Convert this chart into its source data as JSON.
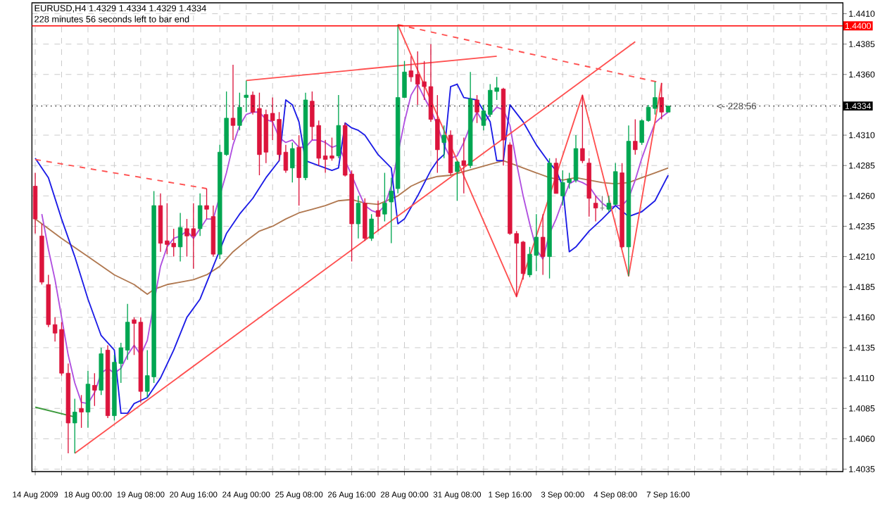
{
  "chart_data": {
    "type": "candlestick",
    "title": "EURUSD,H4 1.4329 1.4334 1.4329 1.4334",
    "subtitle": "228 minutes 56 seconds left to bar end",
    "annotations": [
      "<- 228:56"
    ],
    "categories": [
      "14 Aug 2009",
      null,
      null,
      null,
      null,
      null,
      null,
      null,
      "18 Aug 00:00",
      null,
      null,
      null,
      null,
      null,
      null,
      null,
      "19 Aug 08:00",
      null,
      null,
      null,
      null,
      null,
      null,
      null,
      "20 Aug 16:00",
      null,
      null,
      null,
      null,
      null,
      null,
      null,
      "24 Aug 00:00",
      null,
      null,
      null,
      null,
      null,
      null,
      null,
      "25 Aug 08:00",
      null,
      null,
      null,
      null,
      null,
      null,
      null,
      "26 Aug 16:00",
      null,
      null,
      null,
      null,
      null,
      null,
      null,
      "28 Aug 00:00",
      null,
      null,
      null,
      null,
      null,
      null,
      null,
      "31 Aug 08:00",
      null,
      null,
      null,
      null,
      null,
      null,
      null,
      "1 Sep 16:00",
      null,
      null,
      null,
      null,
      null,
      null,
      null,
      "3 Sep 00:00",
      null,
      null,
      null,
      null,
      null,
      null,
      null,
      "4 Sep 08:00",
      null,
      null,
      null,
      null,
      null,
      null,
      null,
      "7 Sep 16:00",
      null,
      null,
      null,
      null,
      null,
      null,
      null,
      null,
      null,
      null,
      null,
      null,
      null,
      null,
      null,
      null,
      null,
      null,
      null,
      null,
      null,
      null,
      null,
      null,
      null,
      null
    ],
    "ohlc": [
      [
        1.4268,
        1.4279,
        1.4229,
        1.4241
      ],
      [
        1.4227,
        1.4237,
        1.4187,
        1.4189
      ],
      [
        1.4187,
        1.4195,
        1.4152,
        1.4154
      ],
      [
        1.4154,
        1.416,
        1.414,
        1.4147
      ],
      [
        1.415,
        1.4156,
        1.4112,
        1.4114
      ],
      [
        1.4114,
        1.4122,
        1.4048,
        1.4073
      ],
      [
        1.4073,
        1.4093,
        1.4048,
        1.4082
      ],
      [
        1.4085,
        1.4096,
        1.4069,
        1.4082
      ],
      [
        1.4082,
        1.4116,
        1.4069,
        1.4105
      ],
      [
        1.4104,
        1.4114,
        1.4087,
        1.41
      ],
      [
        1.41,
        1.4135,
        1.4096,
        1.413
      ],
      [
        1.4133,
        1.4137,
        1.4077,
        1.4079
      ],
      [
        1.4079,
        1.4129,
        1.4075,
        1.4123
      ],
      [
        1.4122,
        1.4139,
        1.4106,
        1.4135
      ],
      [
        1.4133,
        1.4171,
        1.4125,
        1.4156
      ],
      [
        1.4158,
        1.416,
        1.4129,
        1.4155
      ],
      [
        1.4156,
        1.416,
        1.409,
        1.4099
      ],
      [
        1.4099,
        1.4133,
        1.4094,
        1.4112
      ],
      [
        1.4111,
        1.4264,
        1.4106,
        1.4252
      ],
      [
        1.4252,
        1.4262,
        1.4214,
        1.4221
      ],
      [
        1.4223,
        1.4254,
        1.4212,
        1.422
      ],
      [
        1.4221,
        1.4233,
        1.421,
        1.4218
      ],
      [
        1.4218,
        1.4246,
        1.4206,
        1.4234
      ],
      [
        1.4233,
        1.4241,
        1.421,
        1.4227
      ],
      [
        1.4233,
        1.4254,
        1.42,
        1.4227
      ],
      [
        1.4233,
        1.4262,
        1.4227,
        1.4252
      ],
      [
        1.4252,
        1.4266,
        1.4241,
        1.4249
      ],
      [
        1.4243,
        1.4252,
        1.421,
        1.4212
      ],
      [
        1.4212,
        1.4302,
        1.4208,
        1.4296
      ],
      [
        1.4294,
        1.4346,
        1.4293,
        1.4324
      ],
      [
        1.4324,
        1.4368,
        1.4306,
        1.4318
      ],
      [
        1.4318,
        1.4345,
        1.4314,
        1.4333
      ],
      [
        1.4341,
        1.4355,
        1.4329,
        1.4343
      ],
      [
        1.4343,
        1.4346,
        1.4327,
        1.4329
      ],
      [
        1.4332,
        1.4345,
        1.4277,
        1.4294
      ],
      [
        1.4327,
        1.4331,
        1.4287,
        1.4296
      ],
      [
        1.4328,
        1.4341,
        1.4306,
        1.4322
      ],
      [
        1.4323,
        1.4329,
        1.4289,
        1.4294
      ],
      [
        1.4296,
        1.4302,
        1.4279,
        1.4281
      ],
      [
        1.4283,
        1.4304,
        1.4271,
        1.4299
      ],
      [
        1.43,
        1.431,
        1.4252,
        1.4275
      ],
      [
        1.4275,
        1.4345,
        1.4273,
        1.4339
      ],
      [
        1.4338,
        1.4346,
        1.4306,
        1.4317
      ],
      [
        1.4318,
        1.4322,
        1.4285,
        1.4291
      ],
      [
        1.4293,
        1.4306,
        1.4279,
        1.429
      ],
      [
        1.4293,
        1.4308,
        1.4289,
        1.4291
      ],
      [
        1.4293,
        1.4343,
        1.4291,
        1.4318
      ],
      [
        1.4318,
        1.432,
        1.4276,
        1.4277
      ],
      [
        1.4278,
        1.4281,
        1.4206,
        1.4237
      ],
      [
        1.4237,
        1.426,
        1.4225,
        1.4254
      ],
      [
        1.4254,
        1.4258,
        1.4223,
        1.4225
      ],
      [
        1.4225,
        1.4245,
        1.4223,
        1.4241
      ],
      [
        1.4248,
        1.4256,
        1.4231,
        1.4243
      ],
      [
        1.4245,
        1.4279,
        1.4239,
        1.4254
      ],
      [
        1.4255,
        1.4275,
        1.4221,
        1.4264
      ],
      [
        1.4266,
        1.4401,
        1.4262,
        1.4341
      ],
      [
        1.4341,
        1.4371,
        1.4341,
        1.4362
      ],
      [
        1.4363,
        1.4375,
        1.4354,
        1.4358
      ],
      [
        1.436,
        1.4379,
        1.4335,
        1.4352
      ],
      [
        1.4354,
        1.4371,
        1.4339,
        1.435
      ],
      [
        1.435,
        1.4385,
        1.4321,
        1.4323
      ],
      [
        1.4323,
        1.4343,
        1.4279,
        1.4298
      ],
      [
        1.4304,
        1.4318,
        1.4291,
        1.431
      ],
      [
        1.431,
        1.4314,
        1.4277,
        1.4279
      ],
      [
        1.428,
        1.4289,
        1.4256,
        1.4288
      ],
      [
        1.4289,
        1.4308,
        1.4262,
        1.4285
      ],
      [
        1.4285,
        1.4362,
        1.4283,
        1.434
      ],
      [
        1.4339,
        1.4343,
        1.432,
        1.4329
      ],
      [
        1.4318,
        1.4335,
        1.4314,
        1.433
      ],
      [
        1.4327,
        1.4352,
        1.4325,
        1.4347
      ],
      [
        1.4346,
        1.4358,
        1.4339,
        1.4349
      ],
      [
        1.4348,
        1.4349,
        1.4285,
        1.4306
      ],
      [
        1.4302,
        1.4304,
        1.4228,
        1.4229
      ],
      [
        1.4229,
        1.4231,
        1.4177,
        1.4221
      ],
      [
        1.4222,
        1.4223,
        1.4191,
        1.4196
      ],
      [
        1.4195,
        1.4218,
        1.4193,
        1.4212
      ],
      [
        1.4211,
        1.4245,
        1.4198,
        1.4226
      ],
      [
        1.4226,
        1.4245,
        1.4195,
        1.421
      ],
      [
        1.421,
        1.4291,
        1.4192,
        1.4287
      ],
      [
        1.4287,
        1.4291,
        1.4262,
        1.4262
      ],
      [
        1.426,
        1.4281,
        1.4252,
        1.4271
      ],
      [
        1.4271,
        1.4279,
        1.4266,
        1.4274
      ],
      [
        1.4273,
        1.431,
        1.4271,
        1.4299
      ],
      [
        1.4299,
        1.4343,
        1.4287,
        1.4289
      ],
      [
        1.4287,
        1.4291,
        1.4243,
        1.4258
      ],
      [
        1.4254,
        1.426,
        1.4239,
        1.425
      ],
      [
        1.425,
        1.426,
        1.4248,
        1.425
      ],
      [
        1.4249,
        1.426,
        1.4247,
        1.4254
      ],
      [
        1.4253,
        1.4287,
        1.4252,
        1.428
      ],
      [
        1.4279,
        1.4287,
        1.4217,
        1.4218
      ],
      [
        1.4218,
        1.4318,
        1.4194,
        1.4305
      ],
      [
        1.4305,
        1.4323,
        1.4294,
        1.4298
      ],
      [
        1.4304,
        1.4323,
        1.4302,
        1.4322
      ],
      [
        1.4322,
        1.4335,
        1.4321,
        1.4333
      ],
      [
        1.4332,
        1.4354,
        1.4327,
        1.4341
      ],
      [
        1.4341,
        1.4353,
        1.4323,
        1.4329
      ],
      [
        1.4329,
        1.4334,
        1.4329,
        1.4334
      ],
      null,
      null,
      null,
      null,
      null,
      null,
      null,
      null,
      null,
      null,
      null,
      null,
      null,
      null,
      null,
      null,
      null,
      null,
      null,
      null,
      null,
      null,
      null,
      null,
      null,
      null
    ],
    "colors": [
      "#dc143c",
      "#dc143c",
      "#dc143c",
      "#dc143c",
      "#dc143c",
      "#dc143c",
      "#00a651",
      "#dc143c",
      "#00a651",
      "#dc143c",
      "#00a651",
      "#dc143c",
      "#00a651",
      "#00a651",
      "#00a651",
      "#dc143c",
      "#dc143c",
      "#00a651",
      "#00a651",
      "#dc143c",
      "#dc143c",
      "#dc143c",
      "#00a651",
      "#dc143c",
      "#dc143c",
      "#00a651",
      "#dc143c",
      "#dc143c",
      "#00a651",
      "#00a651",
      "#dc143c",
      "#00a651",
      "#00a651",
      "#dc143c",
      "#dc143c",
      "#dc143c",
      "#dc143c",
      "#dc143c",
      "#dc143c",
      "#00a651",
      "#dc143c",
      "#00a651",
      "#dc143c",
      "#dc143c",
      "#dc143c",
      "#dc143c",
      "#00a651",
      "#dc143c",
      "#dc143c",
      "#00a651",
      "#dc143c",
      "#00a651",
      "#dc143c",
      "#00a651",
      "#00a651",
      "#00a651",
      "#00a651",
      "#dc143c",
      "#dc143c",
      "#dc143c",
      "#dc143c",
      "#dc143c",
      "#00a651",
      "#dc143c",
      "#00a651",
      "#dc143c",
      "#00a651",
      "#dc143c",
      "#00a651",
      "#00a651",
      "#00a651",
      "#dc143c",
      "#dc143c",
      "#dc143c",
      "#dc143c",
      "#00a651",
      "#00a651",
      "#dc143c",
      "#00a651",
      "#dc143c",
      "#00a651",
      "#00a651",
      "#00a651",
      "#dc143c",
      "#dc143c",
      "#dc143c",
      "#808080",
      "#00a651",
      "#00a651",
      "#dc143c",
      "#00a651",
      "#dc143c",
      "#00a651",
      "#00a651",
      "#00a651",
      "#dc143c",
      "#00a651",
      null,
      null,
      null,
      null,
      null,
      null,
      null,
      null,
      null,
      null,
      null,
      null,
      null,
      null,
      null,
      null,
      null,
      null,
      null,
      null,
      null,
      null,
      null,
      null,
      null,
      null
    ],
    "series": [
      {
        "type": "line",
        "color": "#b07850",
        "values": [
          1.4241,
          null,
          null,
          null,
          1.4225,
          null,
          null,
          null,
          1.421,
          null,
          null,
          null,
          1.4195,
          null,
          null,
          1.4187,
          null,
          1.4179,
          1.4183,
          null,
          1.4187,
          null,
          1.4189,
          null,
          1.4191,
          null,
          1.4195,
          null,
          1.4202,
          null,
          1.4214,
          null,
          1.4223,
          null,
          1.4231,
          null,
          1.4235,
          null,
          1.4241,
          null,
          1.4246,
          null,
          1.4249,
          null,
          1.4252,
          null,
          1.4256,
          null,
          1.4257,
          null,
          1.4254,
          null,
          1.4253,
          null,
          null,
          1.426,
          null,
          1.4268,
          null,
          1.4273,
          null,
          1.4276,
          null,
          1.4277,
          null,
          1.428,
          null,
          1.4283,
          null,
          1.4286,
          null,
          1.4289,
          1.4287,
          null,
          1.4283,
          null,
          1.4279,
          null,
          1.4275,
          null,
          1.4273,
          null,
          1.4275,
          null,
          1.4273,
          null,
          1.4271,
          null,
          1.427,
          null,
          1.4271,
          null,
          1.4275,
          null,
          1.4279,
          null,
          1.4283,
          null,
          null,
          null,
          null,
          null,
          null,
          null,
          null,
          null,
          null,
          null,
          null,
          null,
          null,
          null,
          null,
          null,
          null,
          null,
          null,
          null,
          null,
          null,
          null,
          null,
          null
        ]
      },
      {
        "type": "line",
        "color": "#b050e0",
        "values": [
          null,
          1.4245,
          1.4216,
          1.4191,
          1.416,
          1.4129,
          1.4106,
          1.409,
          1.4089,
          1.4098,
          1.4114,
          1.4118,
          1.4114,
          1.4118,
          1.4129,
          1.4137,
          1.4129,
          1.4141,
          null,
          1.4202,
          1.4218,
          1.4225,
          1.4227,
          1.4231,
          1.4225,
          1.4233,
          1.4241,
          1.4241,
          null,
          1.4279,
          1.4302,
          1.4318,
          1.4327,
          1.4329,
          1.4329,
          1.4323,
          1.4321,
          1.4308,
          1.4304,
          1.4306,
          1.43,
          1.43,
          1.4306,
          1.4306,
          1.4304,
          1.43,
          1.4302,
          1.4289,
          1.4277,
          1.4264,
          1.4252,
          1.4248,
          1.4246,
          1.4252,
          1.4268,
          null,
          1.4321,
          1.4343,
          1.4352,
          1.4341,
          1.4331,
          1.4318,
          1.4302,
          1.4291,
          1.4293,
          1.4304,
          1.4318,
          1.4329,
          1.432,
          1.4327,
          1.4333,
          1.4331,
          1.4318,
          1.4287,
          1.426,
          1.4237,
          1.4216,
          1.4208,
          1.4229,
          1.4241,
          1.4256,
          1.427,
          1.4273,
          1.4271,
          1.4268,
          1.426,
          1.4254,
          1.425,
          1.4252,
          1.4252,
          1.4258,
          1.4273,
          1.4291,
          1.4306,
          1.432,
          1.4325,
          1.4329,
          null,
          null,
          null,
          null,
          null,
          null,
          null,
          null,
          null,
          null,
          null,
          null,
          null,
          null,
          null,
          null,
          null,
          null,
          null,
          null,
          null,
          null,
          null,
          null,
          null,
          null
        ]
      },
      {
        "type": "line",
        "color": "#1c1ce6",
        "values": [
          1.4291,
          null,
          1.4275,
          null,
          1.4241,
          null,
          1.421,
          null,
          1.4175,
          null,
          1.4145,
          null,
          1.4133,
          1.4081,
          1.4081,
          1.4089,
          null,
          1.4094,
          null,
          1.411,
          null,
          1.4133,
          null,
          1.416,
          null,
          1.4175,
          null,
          1.4202,
          null,
          1.4229,
          null,
          1.4245,
          null,
          1.4258,
          null,
          1.4275,
          null,
          1.4289,
          1.4339,
          1.4335,
          1.4321,
          1.4289,
          null,
          1.4285,
          null,
          1.4281,
          1.4283,
          1.432,
          1.4316,
          1.4314,
          1.431,
          null,
          1.4294,
          null,
          1.4283,
          1.4237,
          1.4241,
          null,
          1.426,
          null,
          1.4281,
          1.4289,
          1.4294,
          1.435,
          1.4352,
          1.4341,
          null,
          1.4339,
          null,
          1.4321,
          1.4289,
          1.4289,
          1.4335,
          null,
          1.4321,
          null,
          1.4302,
          null,
          1.4287,
          1.4281,
          1.4268,
          1.4214,
          1.4218,
          null,
          1.4231,
          null,
          1.4241,
          null,
          1.4252,
          null,
          1.4243,
          null,
          1.4247,
          null,
          1.4256,
          null,
          1.4277,
          null,
          null,
          null,
          null,
          null,
          null,
          null,
          null,
          null,
          null,
          null,
          null,
          null,
          null,
          null,
          null,
          null,
          null,
          null,
          null,
          null,
          null,
          null,
          null,
          null,
          null
        ]
      },
      {
        "type": "line",
        "color": "#3c9a3c",
        "values": [
          1.4086,
          null,
          null,
          null,
          null,
          null,
          1.4078,
          null,
          null,
          null,
          null,
          null,
          null,
          null,
          null,
          null,
          null,
          null,
          null,
          null,
          null,
          null,
          null,
          null,
          null,
          null,
          null,
          null,
          null,
          null,
          null,
          null,
          null,
          null,
          null,
          null,
          null,
          null,
          null,
          null,
          null,
          null,
          null,
          null,
          null,
          null,
          null,
          null,
          null,
          null,
          null,
          null,
          null,
          null,
          null,
          null,
          null,
          null,
          null,
          null,
          null,
          null,
          null,
          null,
          null,
          null,
          null,
          null,
          null,
          null,
          null,
          null,
          null,
          null,
          null,
          null,
          null,
          null,
          null,
          null,
          null,
          null,
          null,
          null,
          null,
          null,
          null,
          null,
          null,
          null,
          null,
          null,
          null,
          null,
          null,
          null,
          null,
          null,
          null,
          null,
          null,
          null,
          null,
          null,
          null,
          null,
          null,
          null,
          null,
          null,
          null,
          null,
          null,
          null,
          null,
          null,
          null,
          null,
          null,
          null,
          null,
          null,
          null
        ]
      },
      {
        "type": "line",
        "color": "#ff5050",
        "values": [
          null,
          null,
          null,
          null,
          null,
          null,
          null,
          null,
          null,
          null,
          null,
          null,
          null,
          null,
          null,
          null,
          null,
          null,
          null,
          null,
          null,
          null,
          null,
          null,
          null,
          null,
          null,
          null,
          null,
          null,
          null,
          null,
          null,
          null,
          null,
          null,
          null,
          null,
          null,
          null,
          null,
          null,
          null,
          null,
          null,
          null,
          null,
          null,
          null,
          null,
          null,
          null,
          null,
          null,
          null,
          1.4401,
          null,
          null,
          null,
          null,
          null,
          null,
          null,
          null,
          null,
          null,
          null,
          null,
          null,
          null,
          null,
          null,
          null,
          1.4177,
          null,
          null,
          null,
          null,
          null,
          null,
          null,
          null,
          null,
          1.4343,
          null,
          null,
          null,
          null,
          null,
          null,
          1.4194,
          null,
          null,
          null,
          null,
          1.4353,
          null,
          null,
          null,
          null,
          null,
          null,
          null,
          null,
          null,
          null,
          null,
          null,
          null,
          null,
          null,
          null,
          null,
          null,
          null,
          null,
          null,
          null,
          null,
          null,
          null,
          null,
          null
        ]
      },
      {
        "type": "line",
        "color": "#ff5050",
        "values": [
          null,
          null,
          null,
          null,
          null,
          null,
          1.4048,
          null,
          null,
          null,
          null,
          null,
          null,
          null,
          null,
          null,
          null,
          null,
          null,
          null,
          null,
          null,
          null,
          null,
          null,
          null,
          null,
          null,
          null,
          null,
          null,
          null,
          null,
          null,
          null,
          null,
          null,
          null,
          null,
          null,
          null,
          null,
          null,
          null,
          null,
          null,
          null,
          null,
          null,
          null,
          null,
          null,
          null,
          null,
          null,
          null,
          null,
          null,
          null,
          null,
          null,
          null,
          null,
          null,
          null,
          null,
          null,
          null,
          null,
          null,
          null,
          null,
          null,
          null,
          null,
          null,
          null,
          null,
          null,
          null,
          null,
          null,
          null,
          null,
          null,
          null,
          null,
          null,
          null,
          null,
          null,
          1.4387,
          null,
          null,
          null,
          null,
          null,
          null,
          null,
          null,
          null,
          null,
          null,
          null,
          null,
          null,
          null,
          null,
          null,
          null,
          null,
          null,
          null,
          null,
          null,
          null,
          null,
          null,
          null,
          null,
          null,
          null,
          null
        ]
      },
      {
        "type": "line",
        "color": "#ff5050",
        "values": [
          null,
          null,
          null,
          null,
          null,
          null,
          null,
          null,
          null,
          null,
          null,
          null,
          null,
          null,
          null,
          null,
          null,
          null,
          null,
          null,
          null,
          null,
          null,
          null,
          null,
          null,
          null,
          null,
          null,
          null,
          null,
          null,
          1.4355,
          null,
          null,
          null,
          null,
          null,
          null,
          null,
          null,
          null,
          null,
          null,
          null,
          null,
          null,
          null,
          null,
          null,
          null,
          null,
          null,
          null,
          null,
          null,
          null,
          null,
          null,
          null,
          null,
          null,
          null,
          null,
          null,
          null,
          null,
          null,
          null,
          null,
          1.4375,
          null,
          null,
          null,
          null,
          null,
          null,
          null,
          null,
          null,
          null,
          null,
          null,
          null,
          null,
          null,
          null,
          null,
          null,
          null,
          null,
          null,
          null,
          null,
          null,
          null,
          null,
          null,
          null,
          null,
          null,
          null,
          null,
          null,
          null,
          null,
          null,
          null,
          null,
          null,
          null,
          null,
          null,
          null,
          null,
          null,
          null,
          null,
          null,
          null,
          null,
          null,
          null
        ]
      },
      {
        "type": "line",
        "color": "#ff5050",
        "line_style": "dashed",
        "values": [
          1.429,
          null,
          null,
          null,
          null,
          null,
          null,
          null,
          null,
          null,
          null,
          null,
          null,
          null,
          null,
          null,
          null,
          null,
          null,
          null,
          null,
          null,
          null,
          null,
          null,
          null,
          1.4266,
          null,
          null,
          null,
          null,
          null,
          null,
          null,
          null,
          null,
          null,
          null,
          null,
          null,
          null,
          null,
          null,
          null,
          null,
          null,
          null,
          null,
          null,
          null,
          null,
          null,
          null,
          null,
          null,
          null,
          null,
          null,
          null,
          null,
          null,
          null,
          null,
          null,
          null,
          null,
          null,
          null,
          null,
          null,
          null,
          null,
          null,
          null,
          null,
          null,
          null,
          null,
          null,
          null,
          null,
          null,
          null,
          null,
          null,
          null,
          null,
          null,
          null,
          null,
          null,
          null,
          null,
          null,
          null,
          null,
          null,
          null,
          null,
          null,
          null,
          null,
          null,
          null,
          null,
          null,
          null,
          null,
          null,
          null,
          null,
          null,
          null,
          null,
          null,
          null,
          null,
          null,
          null,
          null,
          null,
          null,
          null
        ]
      },
      {
        "type": "line",
        "color": "#ff5050",
        "line_style": "dashed",
        "values": [
          null,
          null,
          null,
          null,
          null,
          null,
          null,
          null,
          null,
          null,
          null,
          null,
          null,
          null,
          null,
          null,
          null,
          null,
          null,
          null,
          null,
          null,
          null,
          null,
          null,
          null,
          null,
          null,
          null,
          null,
          null,
          null,
          null,
          null,
          null,
          null,
          null,
          null,
          null,
          null,
          null,
          null,
          null,
          null,
          null,
          null,
          null,
          null,
          null,
          null,
          null,
          null,
          null,
          null,
          null,
          1.4401,
          null,
          null,
          null,
          null,
          null,
          null,
          null,
          null,
          null,
          null,
          null,
          null,
          null,
          null,
          null,
          null,
          null,
          null,
          null,
          null,
          null,
          null,
          null,
          null,
          null,
          null,
          null,
          null,
          null,
          null,
          null,
          null,
          null,
          null,
          null,
          null,
          null,
          null,
          null,
          1.4353,
          null,
          null,
          null,
          null,
          null,
          null,
          null,
          null,
          null,
          null,
          null,
          null,
          null,
          null,
          null,
          null,
          null,
          null,
          null,
          null,
          null,
          null,
          null,
          null,
          null,
          null,
          null
        ]
      }
    ],
    "ylim": [
      1.4033,
      1.4419
    ],
    "yticks": [
      {
        "value": 1.4035,
        "label": "1.4035"
      },
      {
        "value": 1.406,
        "label": "1.4060"
      },
      {
        "value": 1.4085,
        "label": "1.4085"
      },
      {
        "value": 1.411,
        "label": "1.4110"
      },
      {
        "value": 1.4135,
        "label": "1.4135"
      },
      {
        "value": 1.416,
        "label": "1.4160"
      },
      {
        "value": 1.4185,
        "label": "1.4185"
      },
      {
        "value": 1.421,
        "label": "1.4210"
      },
      {
        "value": 1.4235,
        "label": "1.4235"
      },
      {
        "value": 1.426,
        "label": "1.4260"
      },
      {
        "value": 1.4285,
        "label": "1.4285"
      },
      {
        "value": 1.431,
        "label": "1.4310"
      },
      {
        "value": 1.4335,
        "label": null
      },
      {
        "value": 1.436,
        "label": "1.4360"
      },
      {
        "value": 1.4385,
        "label": "1.4385"
      },
      {
        "value": 1.441,
        "label": "1.4410"
      }
    ],
    "ref_lines": [
      {
        "axis": "y",
        "value": 1.44,
        "label": "1.4400",
        "color": "#ff0000",
        "line_style": "solid"
      },
      {
        "axis": "y",
        "value": 1.4334,
        "label": "1.4334",
        "color": "#000000",
        "line_style": "dotted"
      }
    ],
    "grid": true
  }
}
